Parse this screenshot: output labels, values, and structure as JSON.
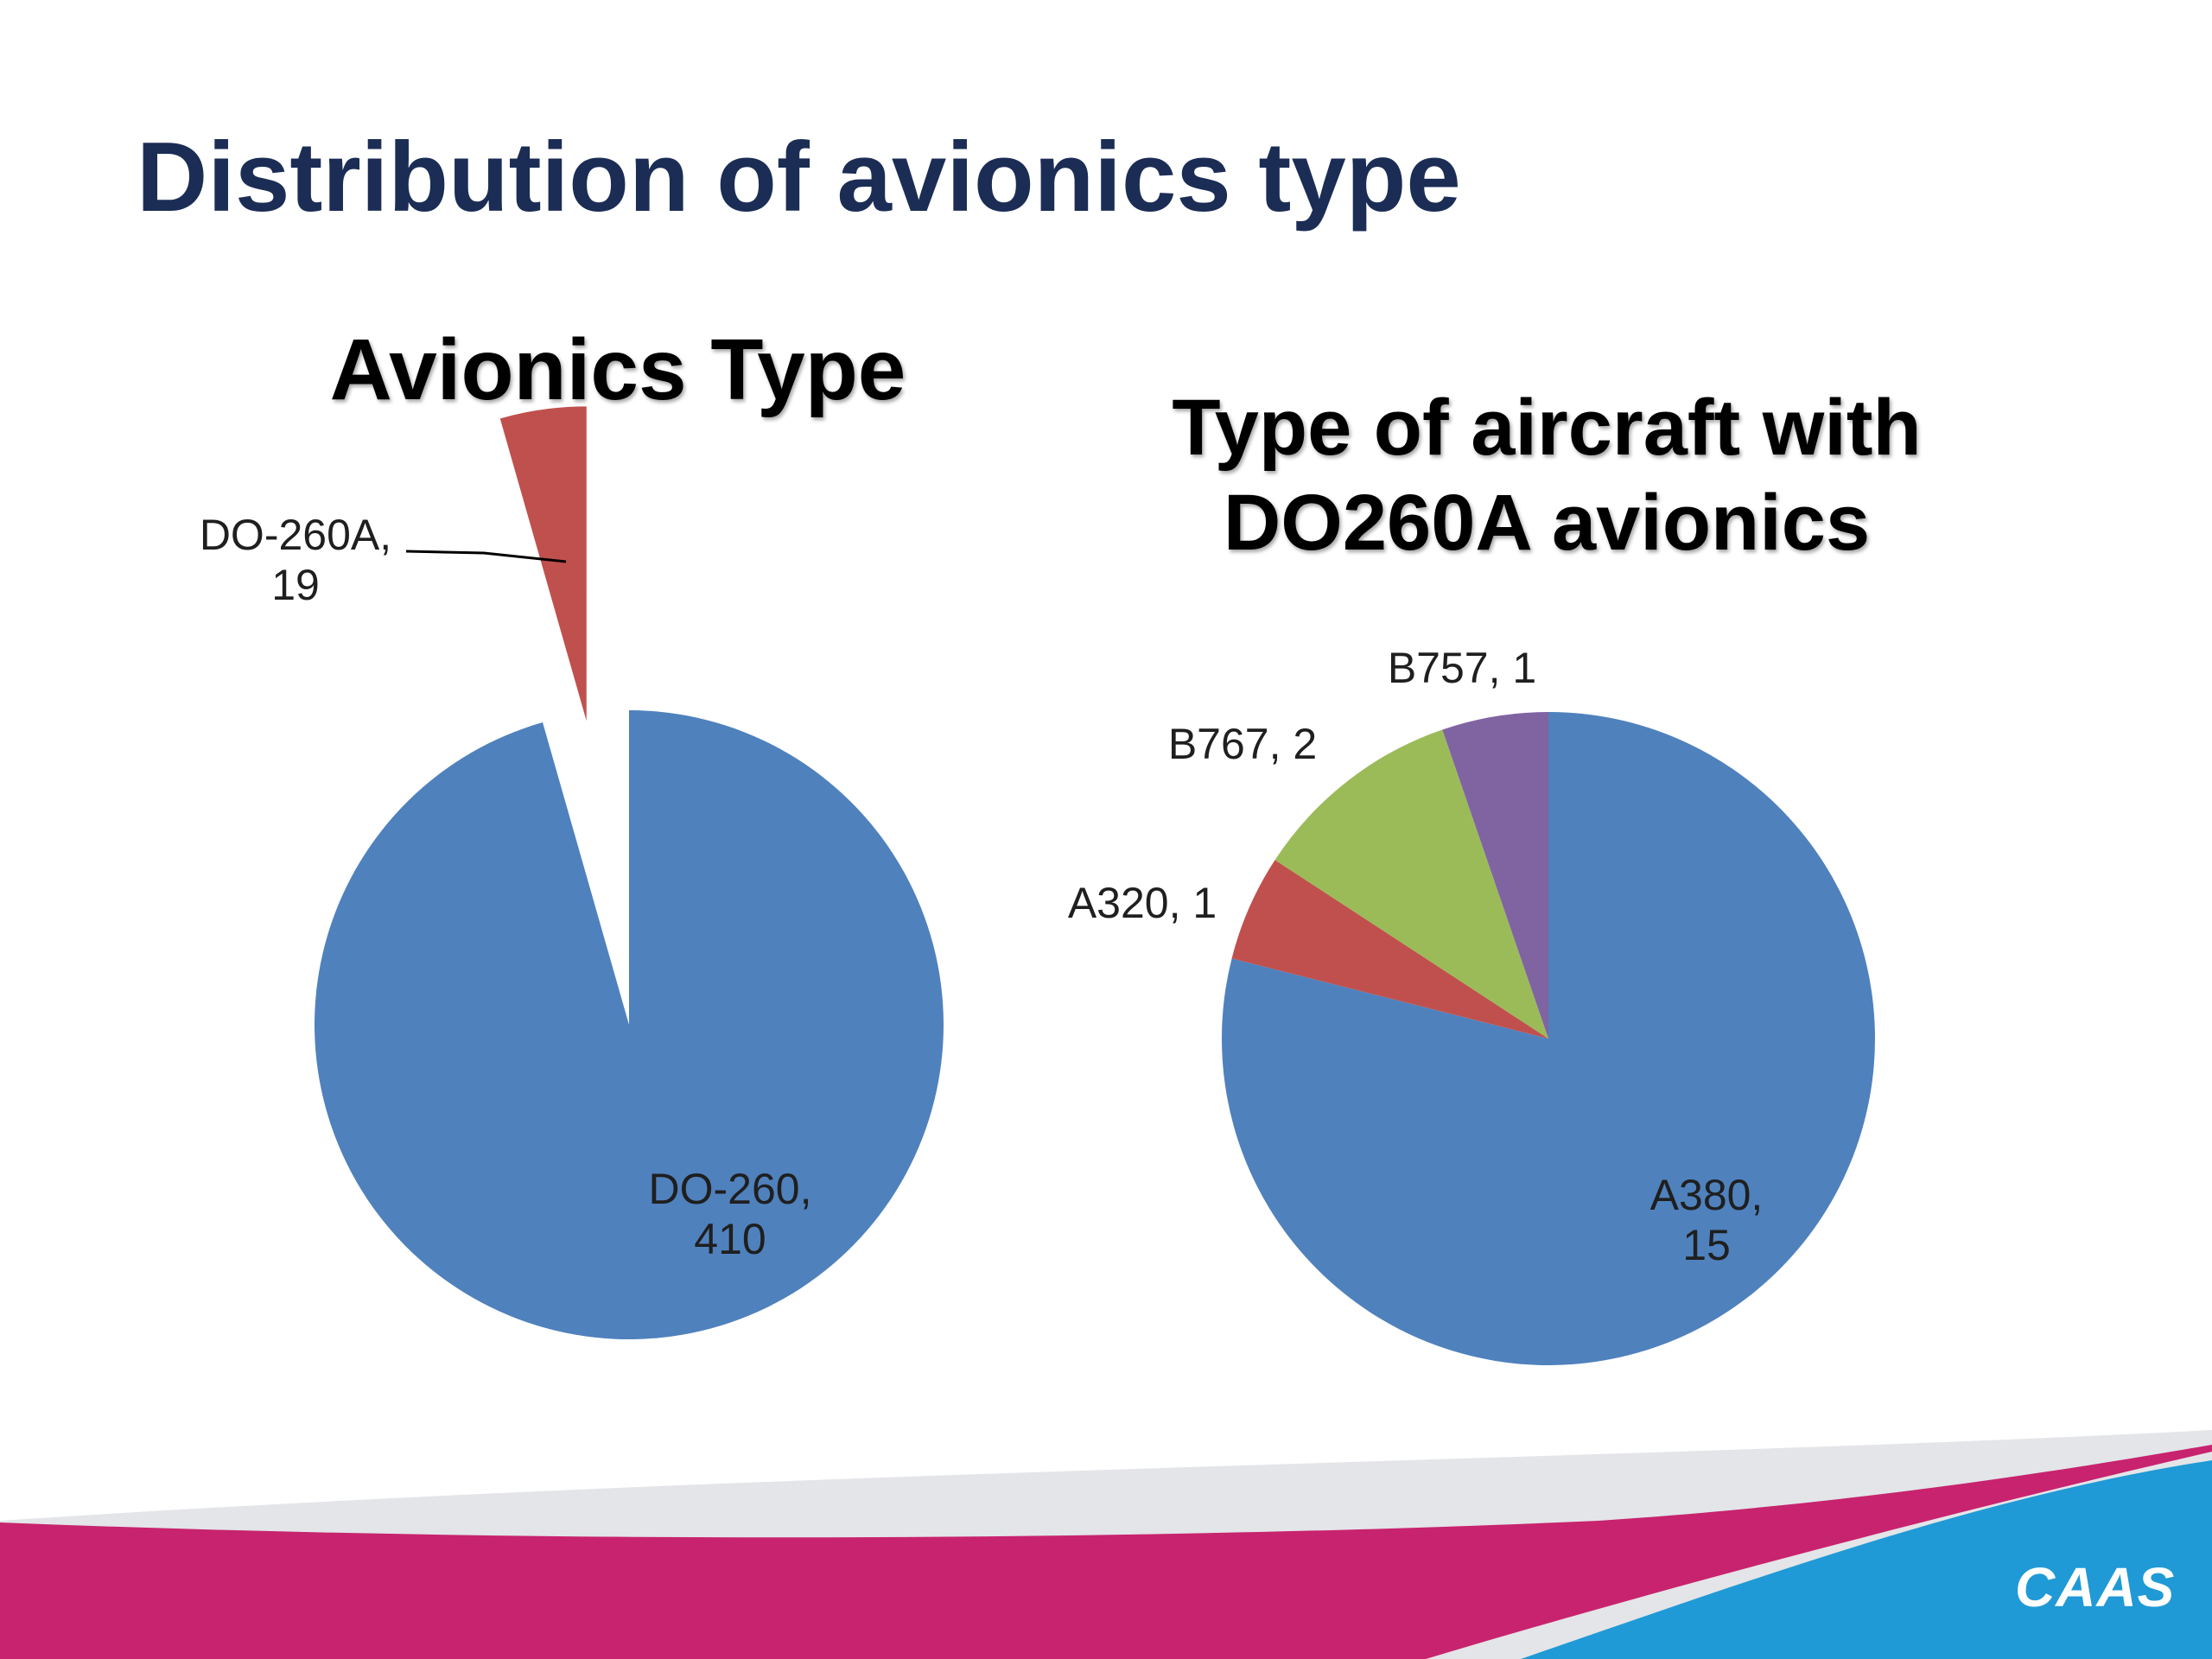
{
  "slide": {
    "title": "Distribution of avionics type",
    "logo": "CAAS"
  },
  "colors": {
    "title": "#1b2d55",
    "blue": "#4f81bd",
    "red": "#c0504d",
    "green": "#9bbb59",
    "purple": "#8064a2",
    "footer_magenta": "#c8236e",
    "footer_blue": "#1f9ad6",
    "footer_grey": "#e3e5e8"
  },
  "chart_data": [
    {
      "type": "pie",
      "title": "Avionics Type",
      "slices": [
        {
          "label": "DO-260",
          "value": 410,
          "color": "#4f81bd",
          "label_lines": [
            "DO-260,",
            "410"
          ]
        },
        {
          "label": "DO-260A",
          "value": 19,
          "color": "#c0504d",
          "exploded": true,
          "label_lines": [
            "DO-260A,",
            "19"
          ]
        }
      ]
    },
    {
      "type": "pie",
      "title": "Type of aircraft with DO260A avionics",
      "title_lines": [
        "Type of aircraft with",
        "DO260A avionics"
      ],
      "slices": [
        {
          "label": "A380",
          "value": 15,
          "color": "#4f81bd",
          "label_lines": [
            "A380,",
            "15"
          ]
        },
        {
          "label": "A320",
          "value": 1,
          "color": "#c0504d",
          "label_lines": [
            "A320, 1"
          ]
        },
        {
          "label": "B767",
          "value": 2,
          "color": "#9bbb59",
          "label_lines": [
            "B767, 2"
          ]
        },
        {
          "label": "B757",
          "value": 1,
          "color": "#8064a2",
          "label_lines": [
            "B757, 1"
          ]
        }
      ]
    }
  ]
}
